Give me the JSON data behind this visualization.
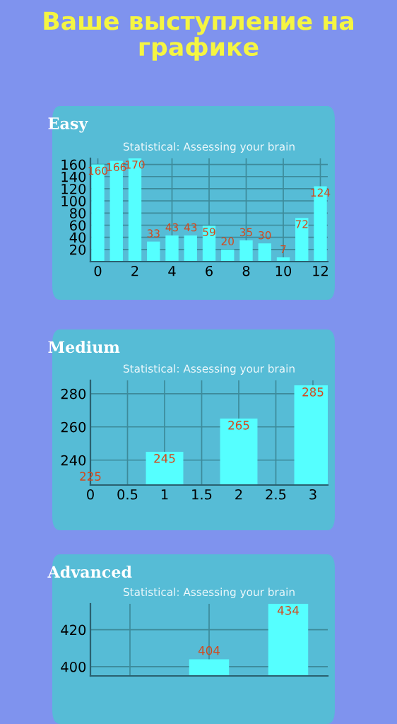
{
  "chart_data": [
    {
      "type": "bar",
      "title": "Easy",
      "subtitle": "Statistical: Assessing your brain",
      "annotations": [
        "Ваше выступление на графике"
      ],
      "x": [
        0,
        1,
        2,
        3,
        4,
        5,
        6,
        7,
        8,
        9,
        10,
        11,
        12
      ],
      "values": [
        160,
        166,
        170,
        33,
        43,
        43,
        59,
        20,
        35,
        30,
        7,
        72,
        124
      ],
      "color": "#55ffff",
      "xlim": [
        -0.4,
        12.4
      ],
      "ylim": [
        0,
        170
      ],
      "xticks": [
        0,
        2,
        4,
        6,
        8,
        10,
        12
      ],
      "yticks": [
        20,
        40,
        60,
        80,
        100,
        120,
        140,
        160
      ],
      "data_labels": true,
      "grid": true
    },
    {
      "type": "bar",
      "title": "Medium",
      "subtitle": "Statistical: Assessing your brain",
      "x": [
        0,
        1,
        2,
        3
      ],
      "values": [
        225,
        245,
        265,
        285
      ],
      "color": "#55ffff",
      "xlim": [
        0,
        3.2
      ],
      "ylim": [
        225,
        288
      ],
      "xticks": [
        0,
        0.5,
        1,
        1.5,
        2,
        2.5,
        3
      ],
      "yticks": [
        240,
        260,
        280
      ],
      "data_labels": true,
      "grid": true
    },
    {
      "type": "bar",
      "title": "Advanced",
      "subtitle": "Statistical: Assessing your brain",
      "categories": [
        null,
        null,
        null
      ],
      "values": [
        null,
        404,
        434
      ],
      "color": "#55ffff",
      "ylim": [
        395,
        434
      ],
      "yticks": [
        400,
        420
      ],
      "data_labels": true,
      "grid": true,
      "tick_labels": "y"
    }
  ]
}
